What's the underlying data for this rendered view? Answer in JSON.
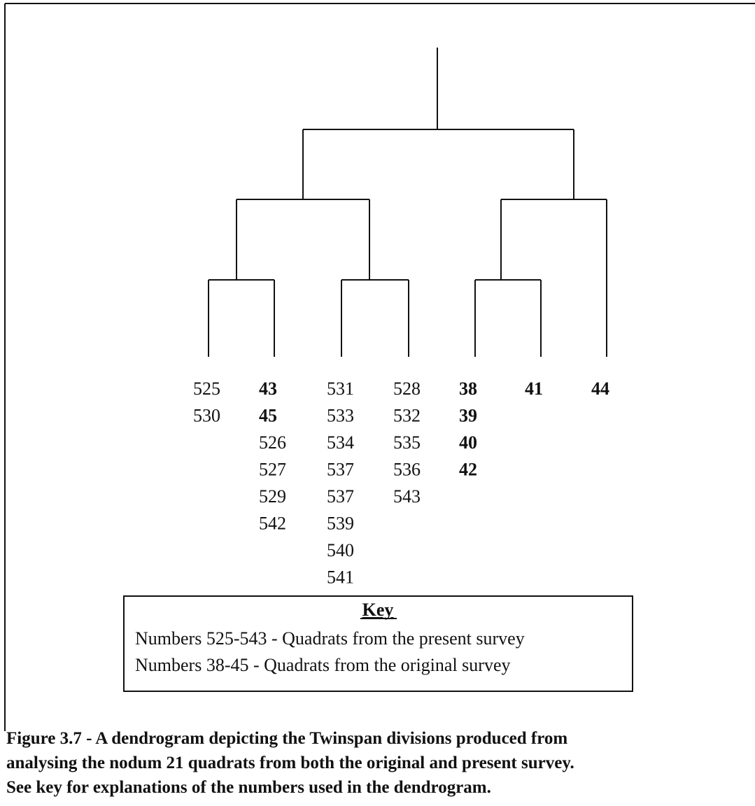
{
  "dendrogram": {
    "leaves": [
      [
        {
          "text": "525",
          "bold": false
        },
        {
          "text": "530",
          "bold": false
        }
      ],
      [
        {
          "text": "43",
          "bold": true
        },
        {
          "text": "45",
          "bold": true
        },
        {
          "text": "526",
          "bold": false
        },
        {
          "text": "527",
          "bold": false
        },
        {
          "text": "529",
          "bold": false
        },
        {
          "text": "542",
          "bold": false
        }
      ],
      [
        {
          "text": "531",
          "bold": false
        },
        {
          "text": "533",
          "bold": false
        },
        {
          "text": "534",
          "bold": false
        },
        {
          "text": "537",
          "bold": false
        },
        {
          "text": "537",
          "bold": false
        },
        {
          "text": "539",
          "bold": false
        },
        {
          "text": "540",
          "bold": false
        },
        {
          "text": "541",
          "bold": false
        }
      ],
      [
        {
          "text": "528",
          "bold": false
        },
        {
          "text": "532",
          "bold": false
        },
        {
          "text": "535",
          "bold": false
        },
        {
          "text": "536",
          "bold": false
        },
        {
          "text": "543",
          "bold": false
        }
      ],
      [
        {
          "text": "38",
          "bold": true
        },
        {
          "text": "39",
          "bold": true
        },
        {
          "text": "40",
          "bold": true
        },
        {
          "text": "42",
          "bold": true
        }
      ],
      [
        {
          "text": "41",
          "bold": true
        }
      ],
      [
        {
          "text": "44",
          "bold": true
        }
      ]
    ]
  },
  "key": {
    "title": "Key",
    "lines": [
      "Numbers 525-543  - Quadrats from the present survey",
      "Numbers 38-45  - Quadrats from the original survey"
    ]
  },
  "caption": {
    "lines": [
      "Figure 3.7  - A dendrogram depicting the Twinspan divisions produced from",
      "analysing the nodum 21 quadrats from both the original and present survey.",
      "See key for explanations of the numbers used in the dendrogram."
    ]
  }
}
